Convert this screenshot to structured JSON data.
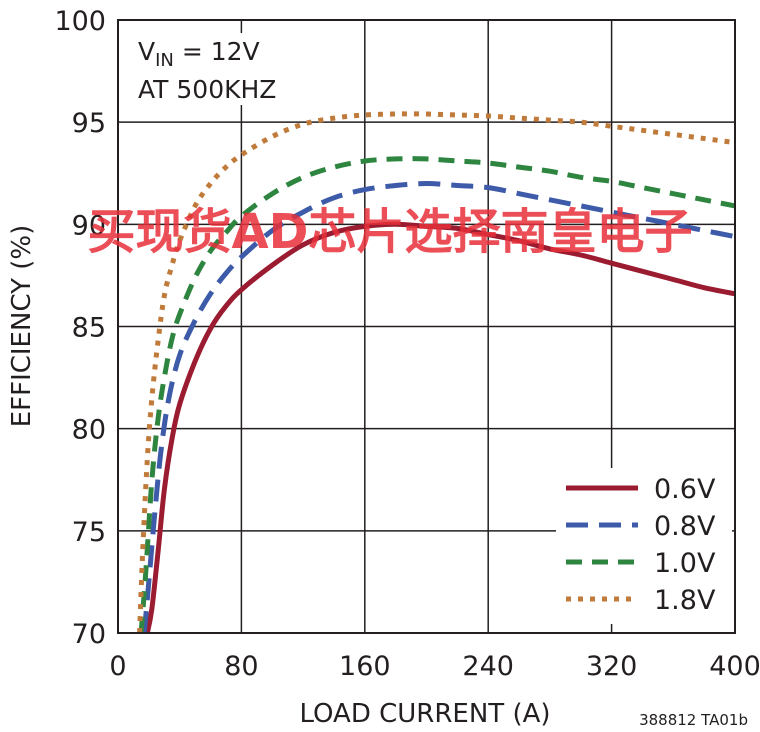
{
  "chart_data": {
    "type": "line",
    "title": "",
    "xlabel": "LOAD CURRENT (A)",
    "ylabel": "EFFICIENCY (%)",
    "xlim": [
      0,
      400
    ],
    "ylim": [
      70,
      100
    ],
    "x_ticks": [
      "0",
      "80",
      "160",
      "240",
      "320",
      "400"
    ],
    "y_ticks": [
      "70",
      "75",
      "80",
      "85",
      "90",
      "95",
      "100"
    ],
    "grid": true,
    "legend_position": "bottom-right",
    "annotation_line1": "V",
    "annotation_sub": "IN",
    "annotation_line1_rest": " = 12V",
    "annotation_line2": "AT 500KHZ",
    "figure_code": "388812 TA01b",
    "watermark": "买现货AD芯片选择南皇电子",
    "series": [
      {
        "name": "0.6V",
        "color": "#9b1b30",
        "dash": "solid",
        "x": [
          19,
          22,
          26,
          30,
          35,
          40,
          50,
          60,
          70,
          80,
          100,
          120,
          140,
          160,
          180,
          200,
          220,
          240,
          260,
          280,
          300,
          320,
          340,
          360,
          380,
          400
        ],
        "y": [
          70,
          71.2,
          74,
          77,
          79.5,
          81.2,
          83.3,
          84.9,
          86.0,
          86.8,
          88.0,
          89.0,
          89.6,
          89.9,
          90.0,
          89.9,
          89.8,
          89.5,
          89.2,
          88.8,
          88.5,
          88.1,
          87.7,
          87.3,
          86.9,
          86.6
        ]
      },
      {
        "name": "0.8V",
        "color": "#3d5ba9",
        "dash": "long",
        "x": [
          17,
          20,
          24,
          28,
          33,
          40,
          50,
          60,
          70,
          80,
          100,
          120,
          140,
          160,
          180,
          200,
          220,
          240,
          260,
          280,
          300,
          320,
          340,
          360,
          380,
          400
        ],
        "y": [
          70,
          72.5,
          76,
          79,
          81.5,
          83.6,
          85.3,
          86.6,
          87.6,
          88.4,
          89.7,
          90.6,
          91.3,
          91.7,
          91.9,
          92.0,
          91.9,
          91.8,
          91.5,
          91.2,
          90.9,
          90.6,
          90.3,
          90.0,
          89.7,
          89.4
        ]
      },
      {
        "name": "1.0V",
        "color": "#2e8540",
        "dash": "medium",
        "x": [
          15,
          18,
          22,
          26,
          30,
          35,
          40,
          50,
          60,
          70,
          80,
          100,
          120,
          140,
          160,
          180,
          200,
          220,
          240,
          260,
          280,
          300,
          320,
          340,
          360,
          380,
          400
        ],
        "y": [
          70,
          73,
          77.5,
          80.5,
          82.5,
          84.4,
          85.6,
          87.4,
          88.7,
          89.6,
          90.4,
          91.5,
          92.3,
          92.8,
          93.1,
          93.2,
          93.2,
          93.1,
          93.0,
          92.8,
          92.6,
          92.3,
          92.1,
          91.8,
          91.5,
          91.2,
          90.9
        ]
      },
      {
        "name": "1.8V",
        "color": "#c07a3a",
        "dash": "dotted",
        "x": [
          14,
          16,
          19,
          22,
          26,
          30,
          35,
          40,
          50,
          60,
          70,
          80,
          100,
          120,
          140,
          160,
          180,
          200,
          220,
          240,
          260,
          280,
          300,
          320,
          340,
          360,
          380,
          400
        ],
        "y": [
          70,
          74,
          78.5,
          81.5,
          84.3,
          86.5,
          88.0,
          89.2,
          90.9,
          92.0,
          92.8,
          93.4,
          94.3,
          94.9,
          95.2,
          95.35,
          95.4,
          95.4,
          95.35,
          95.3,
          95.2,
          95.1,
          95.0,
          94.8,
          94.6,
          94.4,
          94.2,
          94.0
        ]
      }
    ]
  }
}
